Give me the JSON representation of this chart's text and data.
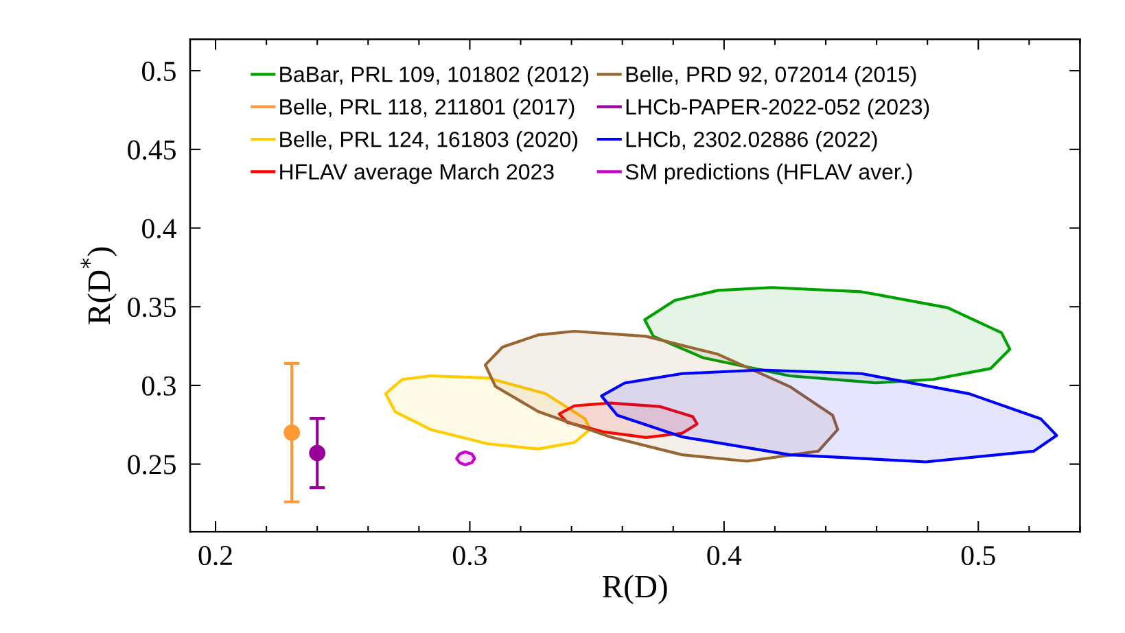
{
  "chart_data": {
    "type": "area",
    "xlabel": "R(D)",
    "ylabel": "R(D$^{*}$)",
    "xlim": [
      0.19,
      0.54
    ],
    "ylim": [
      0.207,
      0.52
    ],
    "xticks": [
      0.2,
      0.3,
      0.4,
      0.5
    ],
    "yticks": [
      0.25,
      0.3,
      0.35,
      0.4,
      0.45,
      0.5
    ],
    "grid": false,
    "legend": "top",
    "series": [
      {
        "name": "BaBar, PRL 109, 101802 (2012)",
        "color": "#00a000",
        "x": [
          0.3688,
          0.3806,
          0.3976,
          0.4187,
          0.454,
          0.4879,
          0.5091,
          0.5124,
          0.5048,
          0.4822,
          0.4597,
          0.4258,
          0.3919,
          0.3722,
          0.3688
        ],
        "values": [
          0.3417,
          0.354,
          0.3604,
          0.3622,
          0.3595,
          0.3494,
          0.3335,
          0.323,
          0.3107,
          0.3038,
          0.3016,
          0.3061,
          0.3175,
          0.3312,
          0.3417
        ]
      },
      {
        "name": "Belle, PRL 118, 211801 (2017)",
        "type": "scatter",
        "marker": "circle",
        "color": "#ff9933",
        "x": [
          0.23
        ],
        "values": [
          0.27
        ],
        "errors": [
          0.044
        ]
      },
      {
        "name": "Belle, PRL 124, 161803 (2020)",
        "color": "#ffcc00",
        "x": [
          0.2669,
          0.2734,
          0.2847,
          0.3073,
          0.3298,
          0.3454,
          0.3473,
          0.3411,
          0.327,
          0.3073,
          0.2847,
          0.2706,
          0.2669
        ],
        "values": [
          0.2947,
          0.3038,
          0.3061,
          0.3047,
          0.2947,
          0.2787,
          0.2719,
          0.2637,
          0.2596,
          0.2628,
          0.2719,
          0.2833,
          0.2947
        ]
      },
      {
        "name": "HFLAV average March 2023",
        "color": "#ff0000",
        "x": [
          0.3352,
          0.3411,
          0.3552,
          0.375,
          0.3877,
          0.3894,
          0.3835,
          0.3693,
          0.3524,
          0.3383,
          0.3352
        ],
        "values": [
          0.2819,
          0.287,
          0.2888,
          0.2865,
          0.2801,
          0.2755,
          0.2696,
          0.2669,
          0.2705,
          0.2765,
          0.2819
        ]
      },
      {
        "name": "Belle, PRD 92, 072014 (2015)",
        "color": "#996633",
        "x": [
          0.3061,
          0.3129,
          0.327,
          0.3411,
          0.3693,
          0.3976,
          0.4258,
          0.4427,
          0.4447,
          0.4371,
          0.4089,
          0.3835,
          0.3552,
          0.327,
          0.3101,
          0.3061
        ],
        "values": [
          0.313,
          0.3244,
          0.3321,
          0.3344,
          0.3312,
          0.3198,
          0.2993,
          0.281,
          0.2719,
          0.2582,
          0.2518,
          0.2559,
          0.2673,
          0.2833,
          0.2993,
          0.313
        ]
      },
      {
        "name": "LHCb-PAPER-2022-052 (2023)",
        "type": "scatter",
        "marker": "circle",
        "color": "#990099",
        "x": [
          0.24
        ],
        "values": [
          0.257
        ],
        "errors": [
          0.022
        ]
      },
      {
        "name": "LHCb, 2302.02886 (2022)",
        "color": "#0000ff",
        "x": [
          0.3518,
          0.3609,
          0.3835,
          0.4145,
          0.454,
          0.4964,
          0.5246,
          0.5308,
          0.5218,
          0.4794,
          0.4258,
          0.3835,
          0.358,
          0.3518
        ],
        "values": [
          0.2933,
          0.3015,
          0.3075,
          0.3098,
          0.3075,
          0.2947,
          0.2787,
          0.2682,
          0.2582,
          0.2514,
          0.2559,
          0.2673,
          0.281,
          0.2933
        ]
      },
      {
        "name": "SM predictions (HFLAV aver.)",
        "color": "#cc00cc",
        "x": [
          0.2948,
          0.296,
          0.2982,
          0.3008,
          0.3019,
          0.3008,
          0.2982,
          0.296,
          0.2948
        ],
        "values": [
          0.2536,
          0.2564,
          0.2578,
          0.2564,
          0.2536,
          0.2509,
          0.2495,
          0.2509,
          0.2536
        ]
      }
    ]
  }
}
